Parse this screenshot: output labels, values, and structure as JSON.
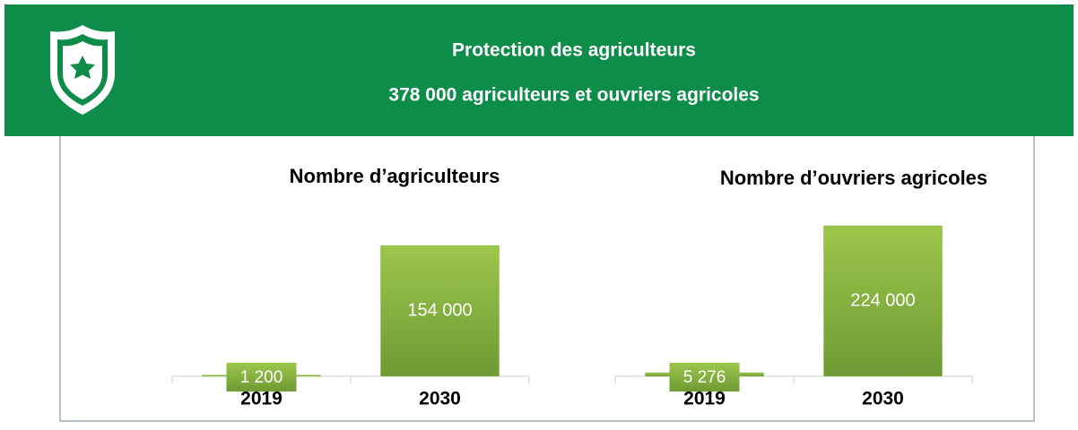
{
  "header": {
    "title": "Protection des agriculteurs",
    "subtitle": "378 000 agriculteurs et ouvriers agricoles"
  },
  "chart_data": [
    {
      "type": "bar",
      "title": "Nombre d’agriculteurs",
      "categories": [
        "2019",
        "2030"
      ],
      "values": [
        1200,
        154000
      ],
      "value_labels": [
        "1 200",
        "154 000"
      ],
      "ylim": [
        0,
        190000
      ],
      "color": "#8bb83f"
    },
    {
      "type": "bar",
      "title": "Nombre d’ouvriers agricoles",
      "categories": [
        "2019",
        "2030"
      ],
      "values": [
        5276,
        224000
      ],
      "value_labels": [
        "5 276",
        "224 000"
      ],
      "ylim": [
        0,
        240000
      ],
      "color": "#8bb83f"
    }
  ]
}
